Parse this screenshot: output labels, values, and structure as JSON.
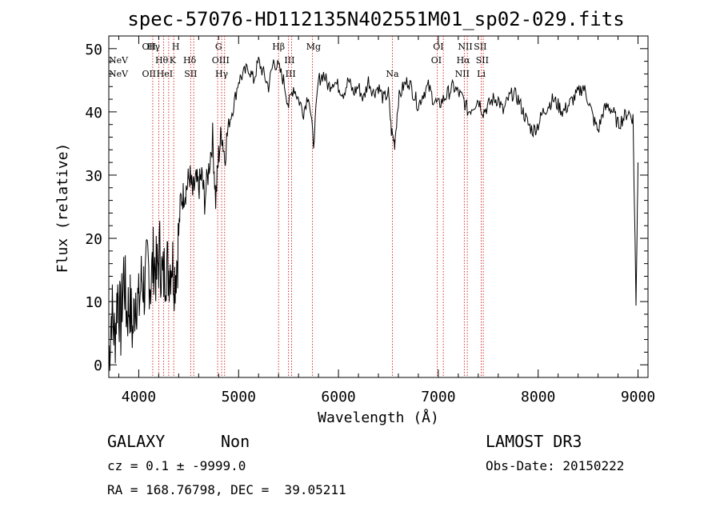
{
  "chart_data": {
    "type": "line",
    "title": "spec-57076-HD112135N402551M01_sp02-029.fits",
    "xlabel": "Wavelength (Å)",
    "ylabel": "Flux (relative)",
    "xlim": [
      3700,
      9100
    ],
    "ylim": [
      -2,
      52
    ],
    "xticks": [
      4000,
      5000,
      6000,
      7000,
      8000,
      9000
    ],
    "yticks": [
      0,
      10,
      20,
      30,
      40,
      50
    ],
    "grid": false,
    "series": [
      {
        "x": [
          3700,
          3730,
          3760,
          3790,
          3820,
          3850,
          3880,
          3910,
          3940,
          3970,
          4000,
          4030,
          4060,
          4090,
          4120,
          4150,
          4180,
          4210,
          4240,
          4270,
          4300,
          4330,
          4360,
          4390,
          4420,
          4450,
          4480,
          4510,
          4540,
          4570,
          4600,
          4630,
          4660,
          4700,
          4740,
          4770,
          4800,
          4830,
          4860,
          4900,
          4950,
          5000,
          5050,
          5100,
          5150,
          5200,
          5250,
          5300,
          5350,
          5400,
          5450,
          5500,
          5550,
          5600,
          5650,
          5700,
          5750,
          5800,
          5850,
          5900,
          5950,
          6000,
          6050,
          6100,
          6150,
          6200,
          6250,
          6300,
          6350,
          6400,
          6450,
          6500,
          6530,
          6563,
          6600,
          6650,
          6700,
          6750,
          6800,
          6850,
          6900,
          6950,
          7000,
          7050,
          7100,
          7150,
          7200,
          7250,
          7300,
          7350,
          7400,
          7450,
          7500,
          7550,
          7600,
          7650,
          7700,
          7750,
          7800,
          7850,
          7900,
          7950,
          8000,
          8050,
          8100,
          8150,
          8200,
          8250,
          8300,
          8350,
          8400,
          8450,
          8500,
          8550,
          8600,
          8650,
          8700,
          8750,
          8800,
          8850,
          8900,
          8950,
          8980,
          9000
        ],
        "y": [
          1,
          9,
          4,
          12,
          6,
          15,
          8,
          10,
          5,
          12,
          9,
          14,
          12,
          16,
          13,
          17,
          14,
          18,
          13,
          16,
          15,
          17,
          14,
          18,
          26,
          27,
          28,
          30,
          27,
          29,
          28,
          30,
          26,
          31,
          36,
          26,
          33,
          37,
          33,
          38,
          41,
          45,
          46,
          47,
          45,
          48,
          46,
          44,
          48,
          47,
          45,
          41,
          44,
          42,
          40,
          43,
          35,
          45,
          46,
          44,
          45,
          44,
          43,
          45,
          43,
          44,
          42,
          45,
          43,
          44,
          42,
          43,
          37,
          35,
          42,
          44,
          45,
          43,
          41,
          43,
          44,
          42,
          41,
          42,
          43,
          44,
          43,
          42,
          40,
          41,
          42,
          40,
          41,
          42,
          42,
          40,
          42,
          43,
          42,
          40,
          38,
          37,
          38,
          40,
          41,
          42,
          41,
          40,
          41,
          42,
          43,
          44,
          42,
          39,
          37,
          40,
          41,
          40,
          38,
          39,
          40,
          39,
          10,
          32
        ]
      }
    ],
    "lines": [
      {
        "wl": 3426,
        "labels": [
          "NeV"
        ],
        "row": 1
      },
      {
        "wl": 3346,
        "labels": [
          "NeV"
        ],
        "row": 2
      },
      {
        "wl": 4103,
        "labels": [
          "OII"
        ],
        "row": 0
      },
      {
        "wl": 4103,
        "labels": [
          "OII"
        ],
        "row": 2
      },
      {
        "wl": 4148,
        "labels": [
          "Hγ"
        ],
        "row": 0
      },
      {
        "wl": 4230,
        "labels": [
          "Hθ"
        ],
        "row": 1
      },
      {
        "wl": 4260,
        "labels": [
          "HeI"
        ],
        "row": 2
      },
      {
        "wl": 4340,
        "labels": [
          "K"
        ],
        "row": 1
      },
      {
        "wl": 4370,
        "labels": [
          "H"
        ],
        "row": 0
      },
      {
        "wl": 4510,
        "labels": [
          "Hδ"
        ],
        "row": 1
      },
      {
        "wl": 4520,
        "labels": [
          "SII"
        ],
        "row": 2
      },
      {
        "wl": 4800,
        "labels": [
          "G"
        ],
        "row": 0
      },
      {
        "wl": 4820,
        "labels": [
          "OIII"
        ],
        "row": 1
      },
      {
        "wl": 4830,
        "labels": [
          "Hγ"
        ],
        "row": 2
      },
      {
        "wl": 5400,
        "labels": [
          "Hβ"
        ],
        "row": 0
      },
      {
        "wl": 5510,
        "labels": [
          "III"
        ],
        "row": 1
      },
      {
        "wl": 5520,
        "labels": [
          "III"
        ],
        "row": 2
      },
      {
        "wl": 5750,
        "labels": [
          "Mg"
        ],
        "row": 0
      },
      {
        "wl": 6540,
        "labels": [
          "Na"
        ],
        "row": 2
      },
      {
        "wl": 7000,
        "labels": [
          "OI"
        ],
        "row": 0
      },
      {
        "wl": 6980,
        "labels": [
          "OI"
        ],
        "row": 1
      },
      {
        "wl": 7270,
        "labels": [
          "NII"
        ],
        "row": 0
      },
      {
        "wl": 7250,
        "labels": [
          "Hα"
        ],
        "row": 1
      },
      {
        "wl": 7240,
        "labels": [
          "NII"
        ],
        "row": 2
      },
      {
        "wl": 7420,
        "labels": [
          "SII"
        ],
        "row": 0
      },
      {
        "wl": 7440,
        "labels": [
          "SII"
        ],
        "row": 1
      },
      {
        "wl": 7430,
        "labels": [
          "Li"
        ],
        "row": 2
      }
    ],
    "line_x_positions": [
      4140,
      4200,
      4250,
      4300,
      4350,
      4520,
      4550,
      4790,
      4830,
      4860,
      5400,
      5500,
      5530,
      5740,
      6540,
      6990,
      7050,
      7260,
      7290,
      7430,
      7450
    ]
  },
  "footer": {
    "class_text": "GALAXY",
    "subclass_text": "Non",
    "survey_text": "LAMOST DR3",
    "cz_text": "cz = 0.1 ± -9999.0",
    "obsdate_text": "Obs-Date: 20150222",
    "radec_text": "RA = 168.76798, DEC =  39.05211"
  },
  "colors": {
    "spectrum": "#000000",
    "line_markers": "#cc0000",
    "axis": "#000000"
  }
}
